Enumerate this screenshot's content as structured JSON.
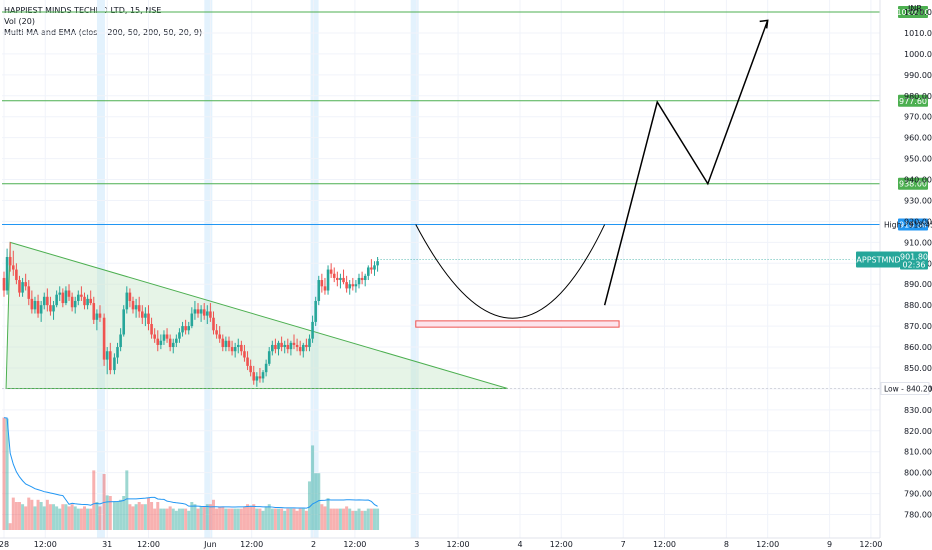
{
  "legend": {
    "symbol_line": "HAPPIEST MINDS TECHNO LTD, 15, NSE",
    "vol_line": "Vol (20)",
    "ma_line": "Multi MA and EMA (close, 200, 50, 200, 50, 20, 9)"
  },
  "currency": "INR",
  "colors": {
    "up": "#26a69a",
    "down": "#ef5350",
    "hline_green": "#4caf50",
    "hline_blue": "#2196f3",
    "triangle_fill": "#e8f5e9",
    "triangle_stroke": "#4caf50",
    "zone_fill": "#fce4ec",
    "zone_stroke": "#ef5350",
    "session_band": "#e3f2fd",
    "vol_ma": "#2196f3"
  },
  "chart_data": {
    "type": "candlestick",
    "y_axis": {
      "range": [
        775,
        1022
      ],
      "ticks": [
        780,
        790,
        800,
        810,
        820,
        830,
        840,
        850,
        860,
        870,
        880,
        890,
        900,
        910,
        920,
        930,
        940,
        950,
        960,
        970,
        980,
        990,
        1000,
        1010,
        1020
      ],
      "tick_labels": [
        "780.00",
        "790.00",
        "800.00",
        "810.00",
        "820.00",
        "830.00",
        "840.00",
        "850.00",
        "860.00",
        "870.00",
        "880.00",
        "890.00",
        "900.00",
        "910.00",
        "920.00",
        "930.00",
        "940.00",
        "950.00",
        "960.00",
        "970.00",
        "980.00",
        "990.00",
        "1000.00",
        "1010.00",
        "1020.00"
      ]
    },
    "x_axis": {
      "range": [
        0,
        8.5
      ],
      "ticks": [
        {
          "t": 0.0,
          "label": "28"
        },
        {
          "t": 0.4,
          "label": "12:00"
        },
        {
          "t": 1.0,
          "label": "31"
        },
        {
          "t": 1.4,
          "label": "12:00"
        },
        {
          "t": 2.0,
          "label": "Jun"
        },
        {
          "t": 2.4,
          "label": "12:00"
        },
        {
          "t": 3.0,
          "label": "2"
        },
        {
          "t": 3.4,
          "label": "12:00"
        },
        {
          "t": 4.0,
          "label": "3"
        },
        {
          "t": 4.4,
          "label": "12:00"
        },
        {
          "t": 5.0,
          "label": "4"
        },
        {
          "t": 5.4,
          "label": "12:00"
        },
        {
          "t": 6.0,
          "label": "7"
        },
        {
          "t": 6.4,
          "label": "12:00"
        },
        {
          "t": 7.0,
          "label": "8"
        },
        {
          "t": 7.4,
          "label": "12:00"
        },
        {
          "t": 8.0,
          "label": "9"
        },
        {
          "t": 8.4,
          "label": "12:00"
        }
      ]
    },
    "candles": [
      [
        0.0,
        893,
        896,
        884,
        887
      ],
      [
        0.03,
        887,
        907,
        885,
        903
      ],
      [
        0.06,
        903,
        910,
        896,
        899
      ],
      [
        0.09,
        899,
        906,
        894,
        897
      ],
      [
        0.12,
        897,
        900,
        890,
        892
      ],
      [
        0.15,
        892,
        894,
        884,
        886
      ],
      [
        0.18,
        886,
        893,
        884,
        891
      ],
      [
        0.21,
        891,
        895,
        887,
        889
      ],
      [
        0.24,
        889,
        892,
        880,
        883
      ],
      [
        0.27,
        883,
        887,
        876,
        878
      ],
      [
        0.3,
        878,
        884,
        876,
        882
      ],
      [
        0.33,
        882,
        885,
        874,
        876
      ],
      [
        0.36,
        876,
        882,
        872,
        880
      ],
      [
        0.39,
        880,
        886,
        878,
        884
      ],
      [
        0.42,
        884,
        888,
        877,
        880
      ],
      [
        0.45,
        880,
        884,
        875,
        877
      ],
      [
        0.48,
        877,
        882,
        873,
        880
      ],
      [
        0.51,
        880,
        887,
        879,
        885
      ],
      [
        0.54,
        885,
        889,
        882,
        886
      ],
      [
        0.57,
        886,
        888,
        879,
        881
      ],
      [
        0.6,
        881,
        889,
        880,
        887
      ],
      [
        0.63,
        887,
        890,
        882,
        884
      ],
      [
        0.66,
        884,
        886,
        877,
        879
      ],
      [
        0.69,
        879,
        884,
        876,
        882
      ],
      [
        0.72,
        882,
        887,
        880,
        885
      ],
      [
        0.75,
        885,
        889,
        882,
        884
      ],
      [
        0.78,
        884,
        886,
        878,
        880
      ],
      [
        0.81,
        880,
        885,
        878,
        883
      ],
      [
        0.84,
        883,
        887,
        880,
        881
      ],
      [
        0.87,
        881,
        884,
        871,
        873
      ],
      [
        0.9,
        873,
        878,
        868,
        876
      ],
      [
        0.93,
        876,
        880,
        872,
        874
      ],
      [
        0.97,
        874,
        876,
        851,
        854
      ],
      [
        1.0,
        854,
        860,
        847,
        858
      ],
      [
        1.03,
        858,
        862,
        847,
        849
      ],
      [
        1.07,
        849,
        857,
        847,
        855
      ],
      [
        1.1,
        855,
        862,
        852,
        860
      ],
      [
        1.13,
        860,
        869,
        858,
        866
      ],
      [
        1.16,
        866,
        880,
        865,
        878
      ],
      [
        1.19,
        878,
        889,
        876,
        886
      ],
      [
        1.22,
        886,
        888,
        879,
        882
      ],
      [
        1.25,
        882,
        884,
        876,
        878
      ],
      [
        1.28,
        878,
        883,
        874,
        880
      ],
      [
        1.31,
        880,
        884,
        874,
        877
      ],
      [
        1.34,
        877,
        880,
        871,
        874
      ],
      [
        1.37,
        874,
        879,
        870,
        876
      ],
      [
        1.4,
        876,
        880,
        868,
        871
      ],
      [
        1.43,
        871,
        874,
        864,
        866
      ],
      [
        1.46,
        866,
        869,
        862,
        864
      ],
      [
        1.49,
        864,
        868,
        858,
        861
      ],
      [
        1.52,
        861,
        866,
        859,
        863
      ],
      [
        1.55,
        863,
        868,
        861,
        866
      ],
      [
        1.58,
        866,
        869,
        862,
        864
      ],
      [
        1.61,
        864,
        866,
        858,
        860
      ],
      [
        1.64,
        860,
        864,
        857,
        862
      ],
      [
        1.67,
        862,
        866,
        860,
        864
      ],
      [
        1.7,
        864,
        869,
        862,
        867
      ],
      [
        1.73,
        867,
        872,
        865,
        870
      ],
      [
        1.76,
        870,
        873,
        866,
        868
      ],
      [
        1.79,
        868,
        872,
        866,
        870
      ],
      [
        1.82,
        870,
        879,
        869,
        876
      ],
      [
        1.85,
        876,
        882,
        873,
        878
      ],
      [
        1.88,
        878,
        881,
        874,
        876
      ],
      [
        1.91,
        876,
        880,
        872,
        878
      ],
      [
        1.94,
        878,
        881,
        873,
        875
      ],
      [
        1.97,
        875,
        880,
        871,
        877
      ],
      [
        2.0,
        877,
        881,
        872,
        874
      ],
      [
        2.03,
        874,
        877,
        866,
        868
      ],
      [
        2.06,
        868,
        871,
        864,
        866
      ],
      [
        2.09,
        866,
        870,
        862,
        864
      ],
      [
        2.12,
        864,
        866,
        858,
        860
      ],
      [
        2.15,
        860,
        865,
        858,
        863
      ],
      [
        2.18,
        863,
        865,
        858,
        860
      ],
      [
        2.21,
        860,
        863,
        856,
        858
      ],
      [
        2.24,
        858,
        862,
        855,
        860
      ],
      [
        2.27,
        860,
        864,
        857,
        861
      ],
      [
        2.3,
        861,
        863,
        856,
        858
      ],
      [
        2.33,
        858,
        861,
        853,
        855
      ],
      [
        2.36,
        855,
        858,
        849,
        851
      ],
      [
        2.39,
        851,
        854,
        846,
        848
      ],
      [
        2.42,
        848,
        851,
        842,
        844
      ],
      [
        2.45,
        844,
        848,
        841,
        846
      ],
      [
        2.48,
        846,
        850,
        843,
        845
      ],
      [
        2.51,
        845,
        849,
        843,
        848
      ],
      [
        2.54,
        848,
        854,
        846,
        852
      ],
      [
        2.57,
        852,
        860,
        851,
        858
      ],
      [
        2.6,
        858,
        863,
        856,
        861
      ],
      [
        2.63,
        861,
        864,
        857,
        859
      ],
      [
        2.66,
        859,
        863,
        856,
        862
      ],
      [
        2.69,
        862,
        865,
        858,
        860
      ],
      [
        2.72,
        860,
        863,
        857,
        861
      ],
      [
        2.75,
        861,
        864,
        857,
        859
      ],
      [
        2.78,
        859,
        863,
        856,
        862
      ],
      [
        2.81,
        862,
        866,
        859,
        861
      ],
      [
        2.84,
        861,
        864,
        858,
        860
      ],
      [
        2.87,
        860,
        863,
        856,
        858
      ],
      [
        2.9,
        858,
        862,
        855,
        861
      ],
      [
        2.93,
        861,
        864,
        858,
        860
      ],
      [
        2.96,
        860,
        866,
        858,
        864
      ],
      [
        2.99,
        864,
        875,
        862,
        872
      ],
      [
        3.02,
        872,
        884,
        870,
        882
      ],
      [
        3.05,
        882,
        894,
        880,
        892
      ],
      [
        3.08,
        892,
        895,
        886,
        889
      ],
      [
        3.11,
        889,
        893,
        885,
        887
      ],
      [
        3.14,
        887,
        899,
        885,
        897
      ],
      [
        3.17,
        897,
        900,
        893,
        895
      ],
      [
        3.2,
        895,
        898,
        891,
        893
      ],
      [
        3.23,
        893,
        896,
        889,
        892
      ],
      [
        3.26,
        892,
        895,
        888,
        893
      ],
      [
        3.29,
        893,
        897,
        890,
        891
      ],
      [
        3.32,
        891,
        894,
        886,
        888
      ],
      [
        3.35,
        888,
        892,
        885,
        890
      ],
      [
        3.38,
        890,
        893,
        887,
        889
      ],
      [
        3.41,
        889,
        892,
        886,
        890
      ],
      [
        3.44,
        890,
        895,
        888,
        893
      ],
      [
        3.47,
        893,
        896,
        890,
        892
      ],
      [
        3.5,
        892,
        895,
        889,
        894
      ],
      [
        3.53,
        894,
        899,
        892,
        898
      ],
      [
        3.56,
        898,
        902,
        895,
        897
      ],
      [
        3.59,
        897,
        901,
        894,
        899
      ],
      [
        3.62,
        899,
        903,
        896,
        901
      ]
    ],
    "levels": [
      {
        "value": 1020.0,
        "label": "1020.00",
        "color": "green"
      },
      {
        "value": 977.6,
        "label": "977.60",
        "color": "green"
      },
      {
        "value": 938.0,
        "label": "938.00",
        "color": "green"
      },
      {
        "value": 918.5,
        "label": "918.50",
        "color": "blue"
      }
    ],
    "high": {
      "label": "High",
      "value": "918.45"
    },
    "low": {
      "label": "Low",
      "value": "840.20"
    },
    "last": {
      "symbol": "HAPPSTMNDS",
      "value": "901.80",
      "countdown": "02:36"
    }
  }
}
